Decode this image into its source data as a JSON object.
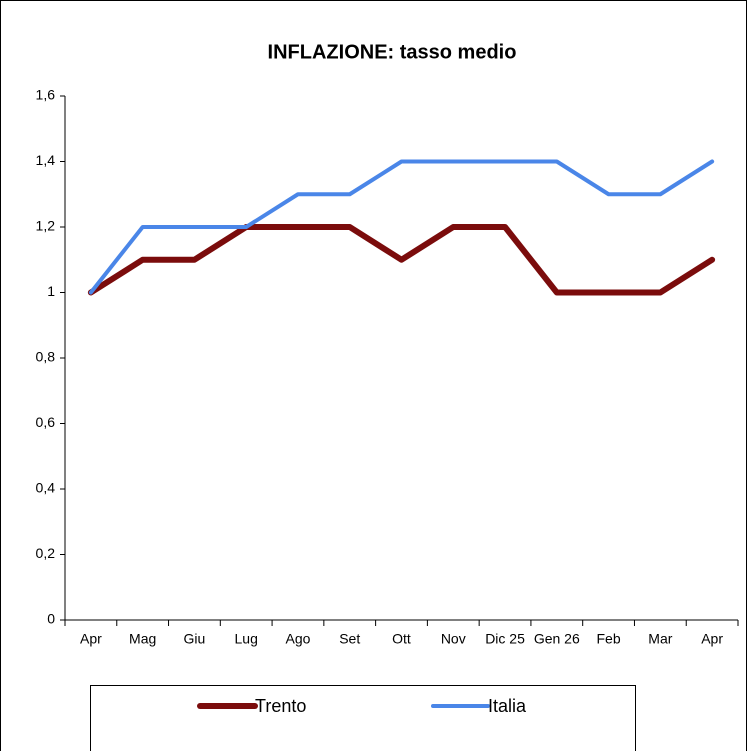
{
  "chart_data": {
    "type": "line",
    "title": "INFLAZIONE: tasso medio",
    "categories": [
      "Apr",
      "Mag",
      "Giu",
      "Lug",
      "Ago",
      "Set",
      "Ott",
      "Nov",
      "Dic 25",
      "Gen 26",
      "Feb",
      "Mar",
      "Apr"
    ],
    "series": [
      {
        "name": "Trento",
        "color": "#7b0c0c",
        "values": [
          1,
          1.1,
          1.1,
          1.2,
          1.2,
          1.2,
          1.1,
          1.2,
          1.2,
          1,
          1,
          1,
          1.1
        ]
      },
      {
        "name": "Italia",
        "color": "#4a86e8",
        "values": [
          1,
          1.2,
          1.2,
          1.2,
          1.3,
          1.3,
          1.4,
          1.4,
          1.4,
          1.4,
          1.3,
          1.3,
          1.4
        ]
      }
    ],
    "ylim": [
      0,
      1.6
    ],
    "yticks": [
      0,
      {
        "value": 0.2,
        "label": "0,2"
      },
      {
        "value": 0.4,
        "label": "0,4"
      },
      {
        "value": 0.6,
        "label": "0,6"
      },
      {
        "value": 0.8,
        "label": "0,8"
      },
      1,
      {
        "value": 1.2,
        "label": "1,2"
      },
      {
        "value": 1.4,
        "label": "1,4"
      },
      {
        "value": 1.6,
        "label": "1,6"
      }
    ],
    "grid": false
  }
}
